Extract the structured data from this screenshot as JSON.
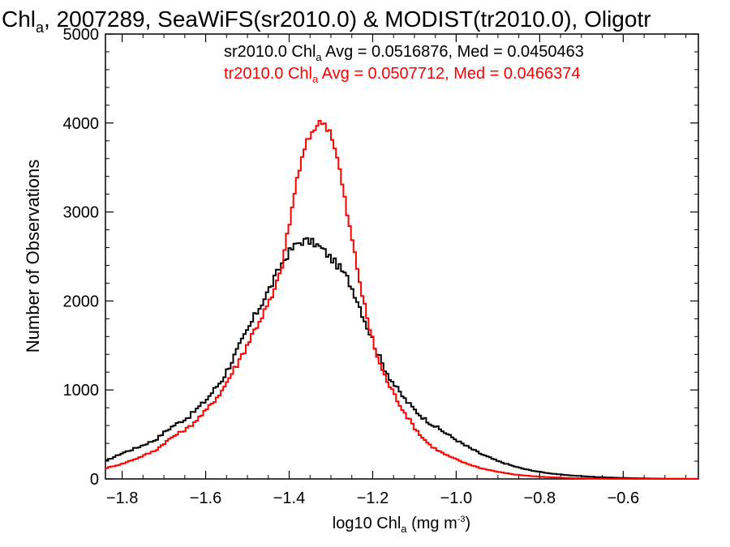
{
  "chart_data": {
    "type": "line",
    "title_main": "Chl",
    "title_sub": "a",
    "title_rest": ", 2007289, SeaWiFS(sr2010.0) & MODIST(tr2010.0), Oligotr",
    "xlabel_main": "log10 Chl",
    "xlabel_sub": "a",
    "xlabel_rest": " (mg m",
    "xlabel_sup": "-3",
    "xlabel_end": ")",
    "ylabel": "Number of Observations",
    "xlim": [
      -1.84,
      -0.42
    ],
    "ylim": [
      0,
      5000
    ],
    "x_ticks": [
      -1.8,
      -1.6,
      -1.4,
      -1.2,
      -1.0,
      -0.8,
      -0.6
    ],
    "x_tick_labels": [
      "−1.8",
      "−1.6",
      "−1.4",
      "−1.2",
      "−1.0",
      "−0.8",
      "−0.6"
    ],
    "y_ticks": [
      0,
      1000,
      2000,
      3000,
      4000,
      5000
    ],
    "y_tick_labels": [
      "0",
      "1000",
      "2000",
      "3000",
      "4000",
      "5000"
    ],
    "annotations": [
      {
        "prefix": "sr2010.0 Chl",
        "sub": "a",
        "suffix": " Avg = 0.0516876, Med = 0.0450463",
        "color": "#000000"
      },
      {
        "prefix": "tr2010.0 Chl",
        "sub": "a",
        "suffix": " Avg = 0.0507712, Med = 0.0466374",
        "color": "#ff0000"
      }
    ],
    "series": [
      {
        "color": "#000000",
        "x": [
          -1.84,
          -1.8,
          -1.76,
          -1.72,
          -1.7,
          -1.68,
          -1.64,
          -1.6,
          -1.56,
          -1.52,
          -1.48,
          -1.44,
          -1.42,
          -1.4,
          -1.38,
          -1.36,
          -1.34,
          -1.32,
          -1.3,
          -1.28,
          -1.26,
          -1.24,
          -1.22,
          -1.2,
          -1.18,
          -1.16,
          -1.14,
          -1.12,
          -1.1,
          -1.08,
          -1.06,
          -1.04,
          -1.02,
          -1.0,
          -0.98,
          -0.96,
          -0.94,
          -0.92,
          -0.9,
          -0.88,
          -0.86,
          -0.84,
          -0.82,
          -0.8,
          -0.78,
          -0.76,
          -0.74,
          -0.72,
          -0.7,
          -0.68,
          -0.66,
          -0.64,
          -0.62,
          -0.6,
          -0.58,
          -0.56,
          -0.54,
          -0.52,
          -0.5,
          -0.48,
          -0.46,
          -0.44,
          -0.42
        ],
        "y": [
          200,
          290,
          360,
          440,
          520,
          590,
          700,
          880,
          1120,
          1480,
          1850,
          2200,
          2400,
          2550,
          2650,
          2680,
          2650,
          2580,
          2480,
          2380,
          2250,
          2050,
          1800,
          1560,
          1320,
          1150,
          1000,
          880,
          780,
          690,
          620,
          560,
          500,
          440,
          380,
          330,
          280,
          240,
          200,
          170,
          140,
          115,
          95,
          80,
          65,
          55,
          45,
          38,
          32,
          26,
          21,
          17,
          14,
          11,
          9,
          7,
          5,
          4,
          3,
          2,
          2,
          1,
          1
        ]
      },
      {
        "color": "#ff0000",
        "x": [
          -1.84,
          -1.8,
          -1.76,
          -1.72,
          -1.7,
          -1.68,
          -1.64,
          -1.6,
          -1.56,
          -1.52,
          -1.48,
          -1.44,
          -1.42,
          -1.4,
          -1.38,
          -1.36,
          -1.34,
          -1.32,
          -1.3,
          -1.28,
          -1.26,
          -1.24,
          -1.22,
          -1.2,
          -1.18,
          -1.16,
          -1.14,
          -1.12,
          -1.1,
          -1.08,
          -1.06,
          -1.04,
          -1.02,
          -1.0,
          -0.98,
          -0.96,
          -0.94,
          -0.92,
          -0.9,
          -0.88,
          -0.86,
          -0.84,
          -0.82,
          -0.8,
          -0.78,
          -0.76,
          -0.74,
          -0.72,
          -0.7,
          -0.68,
          -0.66,
          -0.64,
          -0.62,
          -0.6,
          -0.58,
          -0.56,
          -0.54,
          -0.52,
          -0.5,
          -0.48,
          -0.46,
          -0.44,
          -0.42
        ],
        "y": [
          120,
          170,
          240,
          320,
          400,
          470,
          580,
          760,
          1000,
          1330,
          1700,
          2050,
          2330,
          2850,
          3400,
          3750,
          3950,
          4020,
          3900,
          3500,
          2950,
          2450,
          1950,
          1550,
          1250,
          1050,
          880,
          720,
          580,
          460,
          370,
          310,
          260,
          220,
          180,
          150,
          120,
          100,
          80,
          65,
          50,
          40,
          32,
          26,
          20,
          16,
          12,
          9,
          7,
          5,
          4,
          3,
          2,
          2,
          1,
          1,
          1,
          1,
          0,
          0,
          0,
          0,
          0
        ]
      }
    ]
  }
}
